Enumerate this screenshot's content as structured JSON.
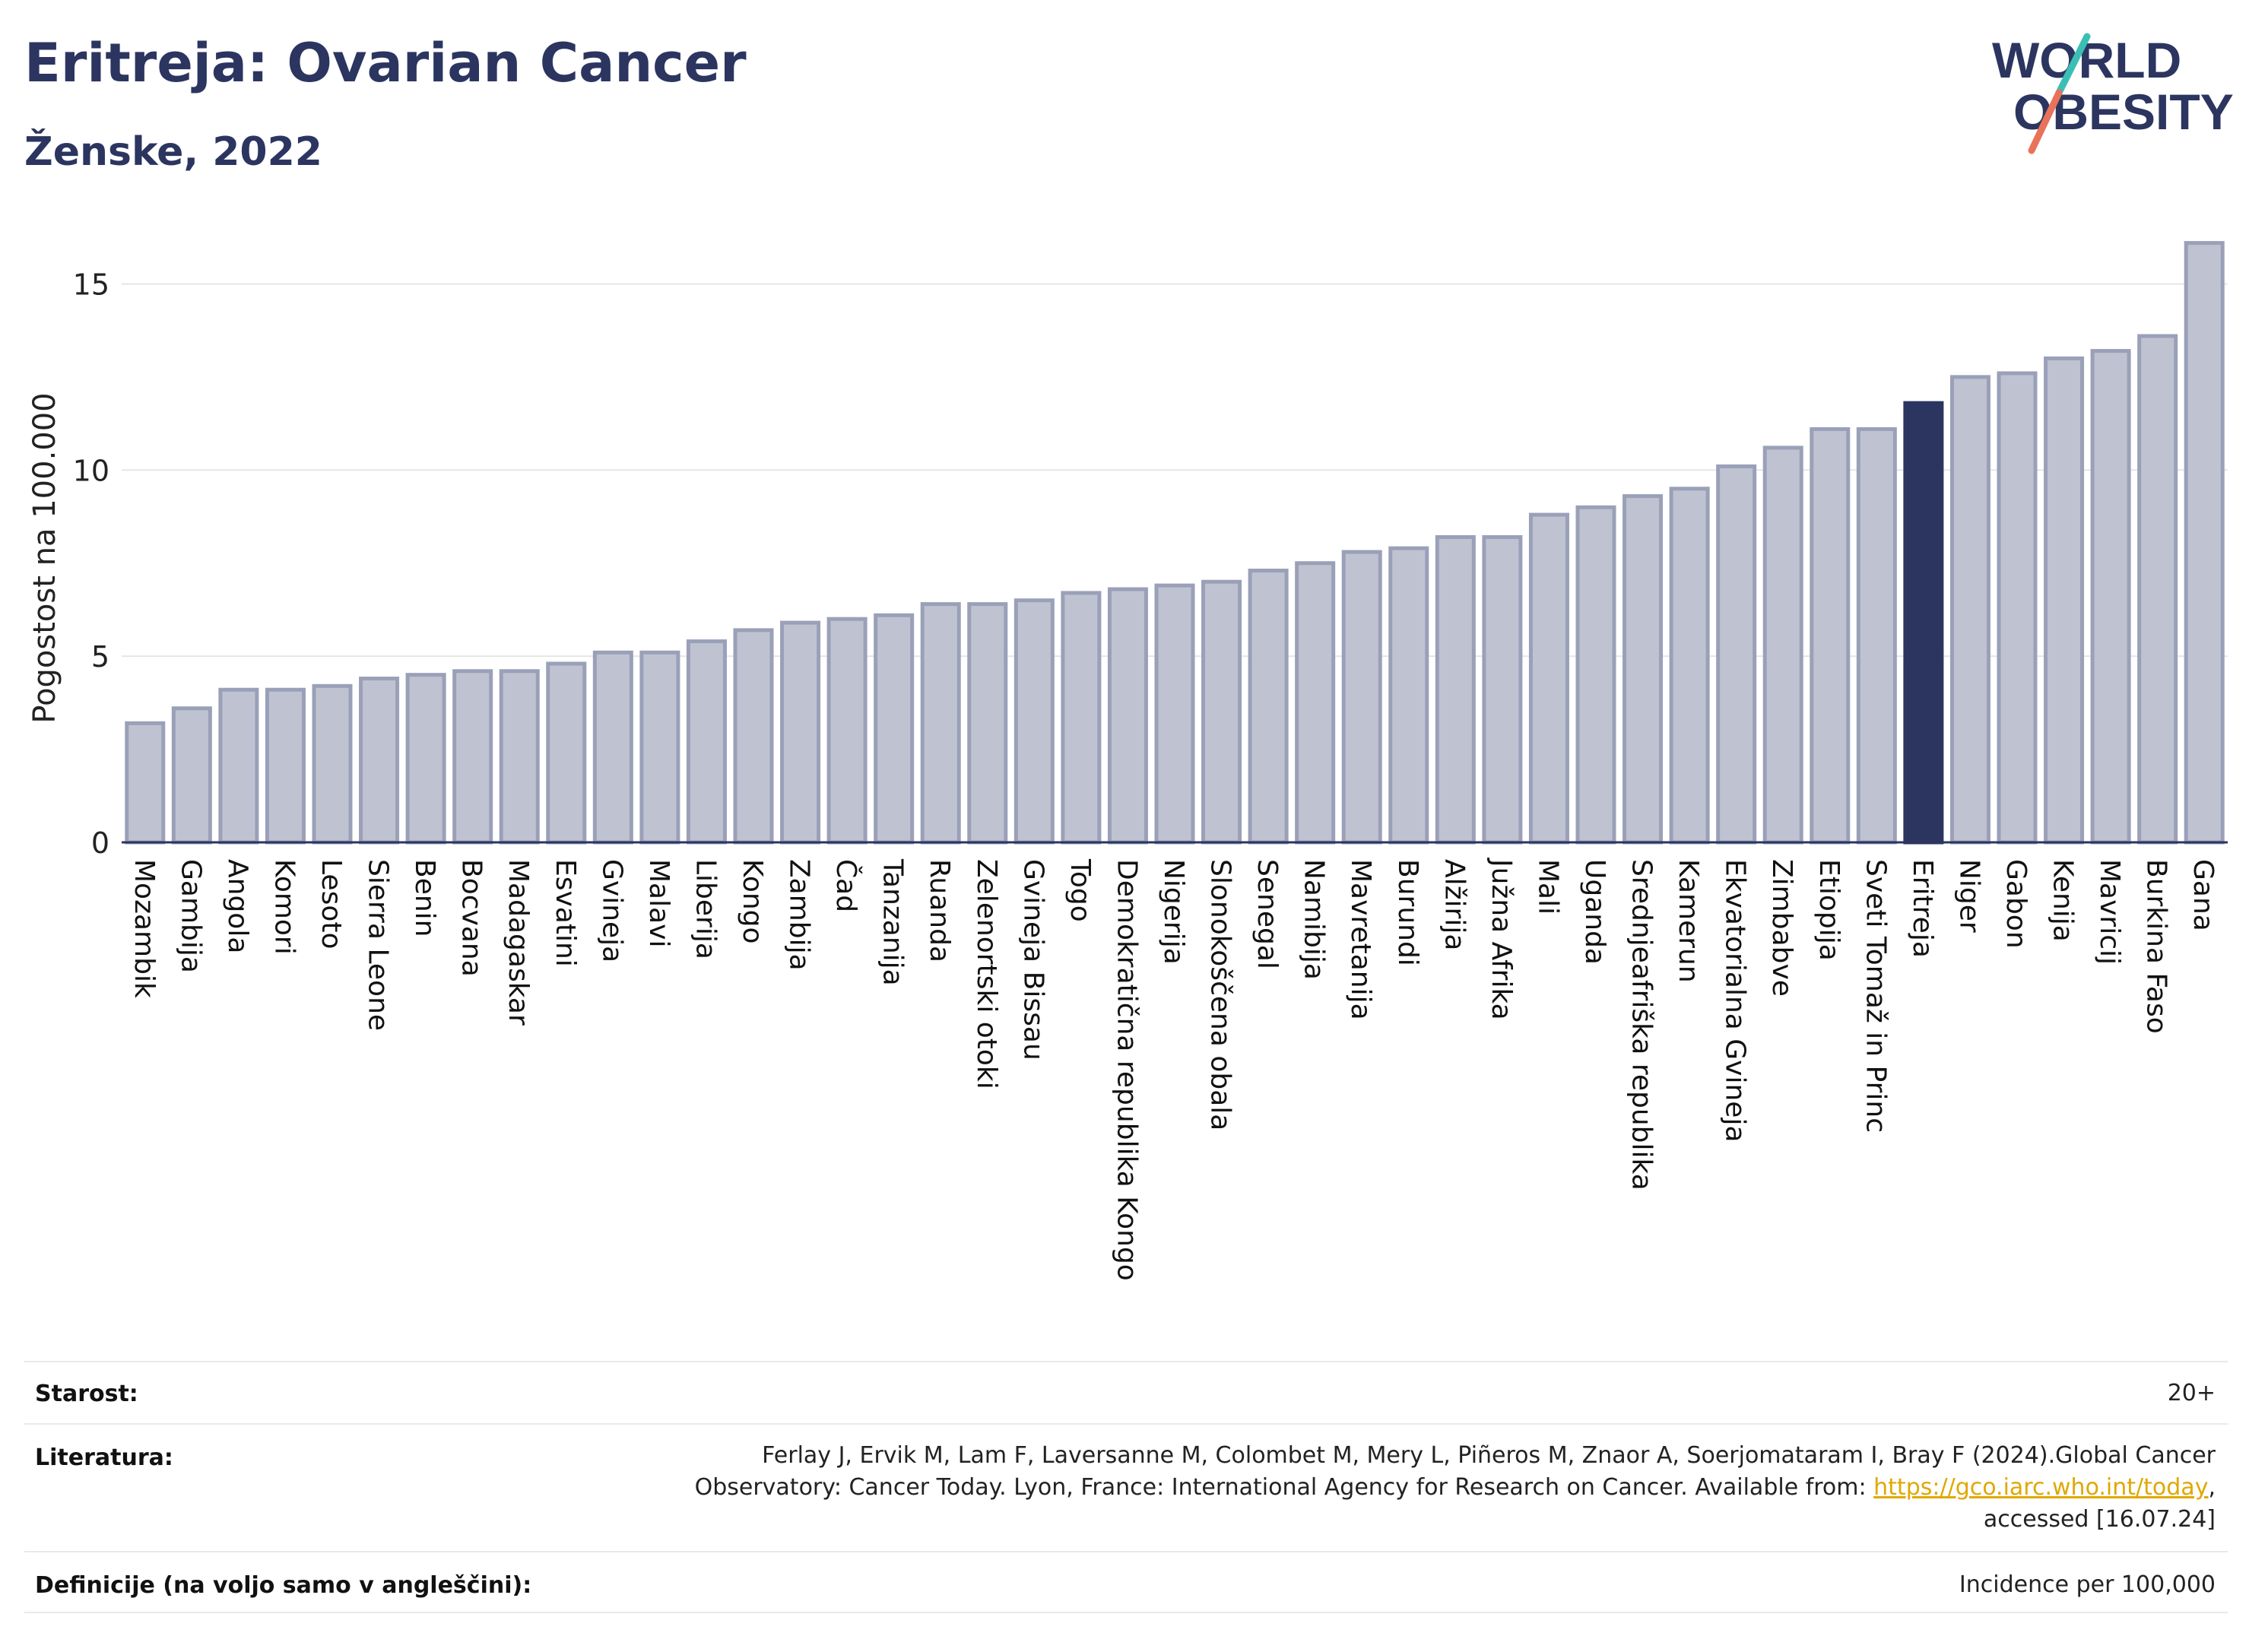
{
  "header": {
    "title": "Eritreja: Ovarian Cancer",
    "subtitle": "Ženske, 2022"
  },
  "logo": {
    "line1": "WORLD",
    "line2": "OBESITY",
    "accent_colors": [
      "#3bbfb5",
      "#e8735a"
    ]
  },
  "chart_data": {
    "type": "bar",
    "title": "",
    "xlabel": "",
    "ylabel": "Pogostost na 100.000",
    "ylim": [
      0,
      16.5
    ],
    "yticks": [
      0,
      5,
      10,
      15
    ],
    "grid": true,
    "highlight": "Eritreja",
    "colors": {
      "bar": "#bfc3d1",
      "bar_edge": "#9aa0b8",
      "highlight": "#2b3560",
      "grid": "#e6e6e6",
      "axis": "#2b3560"
    },
    "categories": [
      "Mozambik",
      "Gambija",
      "Angola",
      "Komori",
      "Lesoto",
      "Sierra Leone",
      "Benin",
      "Bocvana",
      "Madagaskar",
      "Esvatini",
      "Gvineja",
      "Malavi",
      "Liberija",
      "Kongo",
      "Zambija",
      "Čad",
      "Tanzanija",
      "Ruanda",
      "Zelenortski otoki",
      "Gvineja Bissau",
      "Togo",
      "Demokratična republika Kongo",
      "Nigerija",
      "Slonokoščena obala",
      "Senegal",
      "Namibija",
      "Mavretanija",
      "Burundi",
      "Alžirija",
      "Južna Afrika",
      "Mali",
      "Uganda",
      "Srednjeafriška republika",
      "Kamerun",
      "Ekvatorialna Gvineja",
      "Zimbabve",
      "Etiopija",
      "Sveti Tomaž in Princ",
      "Eritreja",
      "Niger",
      "Gabon",
      "Kenija",
      "Mavricij",
      "Burkina Faso",
      "Gana"
    ],
    "values": [
      3.2,
      3.6,
      4.1,
      4.1,
      4.2,
      4.4,
      4.5,
      4.6,
      4.6,
      4.8,
      5.1,
      5.1,
      5.4,
      5.7,
      5.9,
      6.0,
      6.1,
      6.4,
      6.4,
      6.5,
      6.7,
      6.8,
      6.9,
      7.0,
      7.3,
      7.5,
      7.8,
      7.9,
      8.2,
      8.2,
      8.8,
      9.0,
      9.3,
      9.5,
      10.1,
      10.6,
      11.1,
      11.1,
      11.8,
      12.5,
      12.6,
      13.0,
      13.2,
      13.6,
      16.1
    ]
  },
  "meta": {
    "age_label": "Starost:",
    "age_value": "20+",
    "ref_label": "Literatura:",
    "ref_line1": "Ferlay J, Ervik M, Lam F, Laversanne M, Colombet M, Mery L, Piñeros M, Znaor A, Soerjomataram I, Bray F (2024).Global Cancer",
    "ref_line2_pre": "Observatory: Cancer Today. Lyon, France: International Agency for Research on Cancer. Available from: ",
    "ref_link": "https://gco.iarc.who.int/today",
    "ref_line2_post": ",",
    "ref_line3": "accessed [16.07.24]",
    "def_label": "Definicije (na voljo samo v angleščini):",
    "def_value": "Incidence per 100,000"
  }
}
